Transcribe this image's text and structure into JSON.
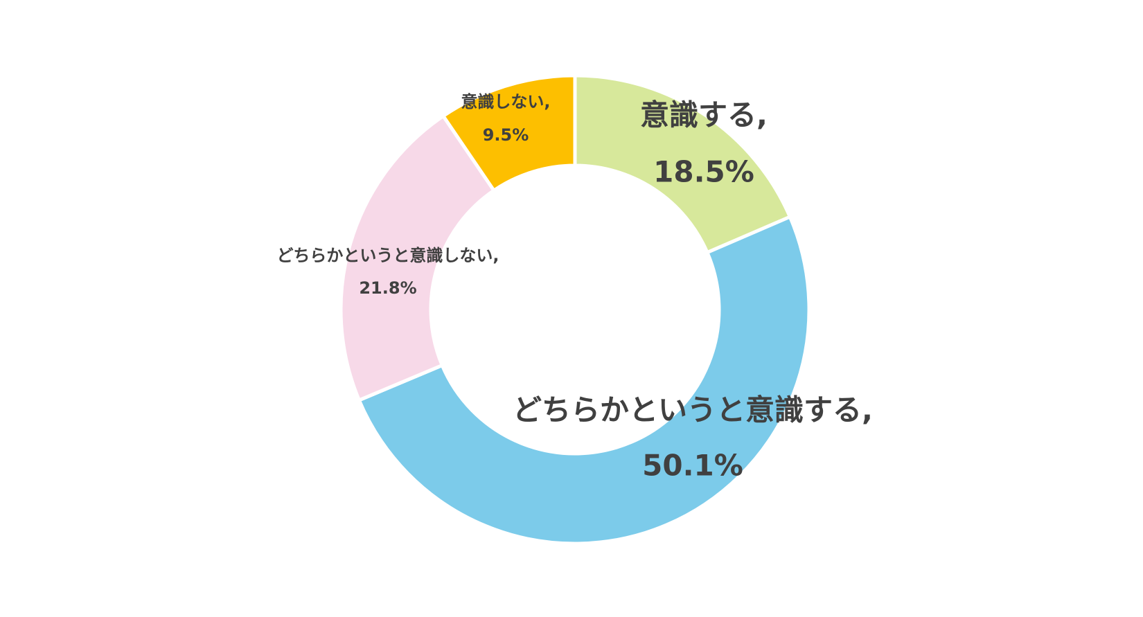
{
  "chart_data": {
    "type": "donut",
    "categories": [
      "意識する,",
      "どちらかというと意識する,",
      "どちらかというと意識しない,",
      "意識しない,"
    ],
    "values": [
      18.5,
      50.1,
      21.8,
      9.5
    ],
    "value_labels": [
      "18.5%",
      "50.1%",
      "21.8%",
      "9.5%"
    ],
    "colors": [
      "#d7e89b",
      "#7ccbea",
      "#f7d9e8",
      "#fdbf00"
    ]
  }
}
